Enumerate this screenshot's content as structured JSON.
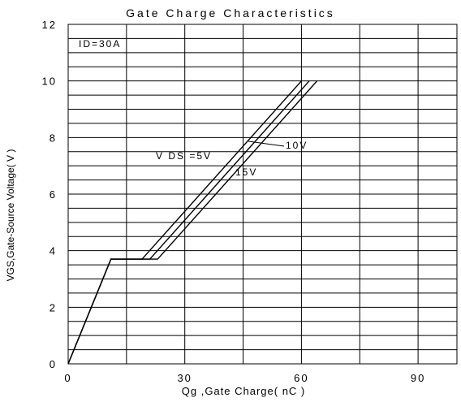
{
  "chart_data": {
    "type": "line",
    "title": "Gate Charge Characteristics",
    "xlabel": "Qg ,Gate Charge( nC )",
    "ylabel": "VGS,Gate-Source Voltage( V )",
    "xlim": [
      0,
      100
    ],
    "ylim": [
      0,
      12
    ],
    "x_ticks": [
      "0",
      "30",
      "60",
      "90"
    ],
    "y_ticks": [
      "0",
      "2",
      "4",
      "6",
      "8",
      "10",
      "12"
    ],
    "grid": true,
    "condition_label": "ID=30A",
    "series": [
      {
        "name": "VDS=5V",
        "x": [
          0,
          11,
          19,
          60
        ],
        "y": [
          0,
          3.7,
          3.7,
          10
        ]
      },
      {
        "name": "10V",
        "x": [
          0,
          11,
          21,
          62
        ],
        "y": [
          0,
          3.7,
          3.7,
          10
        ]
      },
      {
        "name": "15V",
        "x": [
          0,
          11,
          23,
          64
        ],
        "y": [
          0,
          3.7,
          3.7,
          10
        ]
      }
    ],
    "series_labels": [
      "V DS =5V",
      "10V",
      "15V"
    ]
  }
}
